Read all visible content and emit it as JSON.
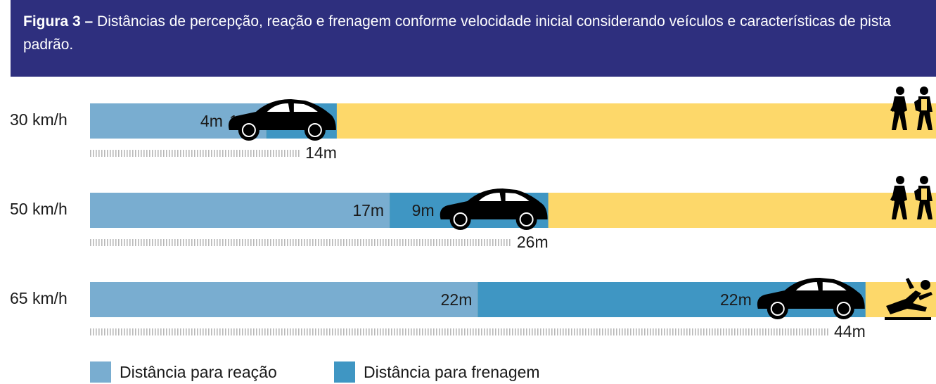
{
  "chart_data": {
    "type": "bar",
    "stacked": true,
    "orientation": "horizontal",
    "figure_label": "Figura 3 –",
    "title": "Distâncias de percepção, reação e frenagem conforme velocidade inicial considerando veículos e características de pista padrão.",
    "categories": [
      "30 km/h",
      "50 km/h",
      "65 km/h"
    ],
    "series": [
      {
        "name": "Distância para reação",
        "color": "#79add0",
        "values": [
          10,
          17,
          22
        ],
        "value_labels": [
          "10m",
          "17m",
          "22m"
        ]
      },
      {
        "name": "Distância para frenagem",
        "color": "#3f96c3",
        "values": [
          4,
          9,
          22
        ],
        "value_labels": [
          "4m",
          "9m",
          "22m"
        ]
      }
    ],
    "totals": [
      14,
      26,
      44
    ],
    "total_labels": [
      "14m",
      "26m",
      "44m"
    ],
    "xlim": [
      0,
      48
    ],
    "legend": "bottom-left"
  }
}
